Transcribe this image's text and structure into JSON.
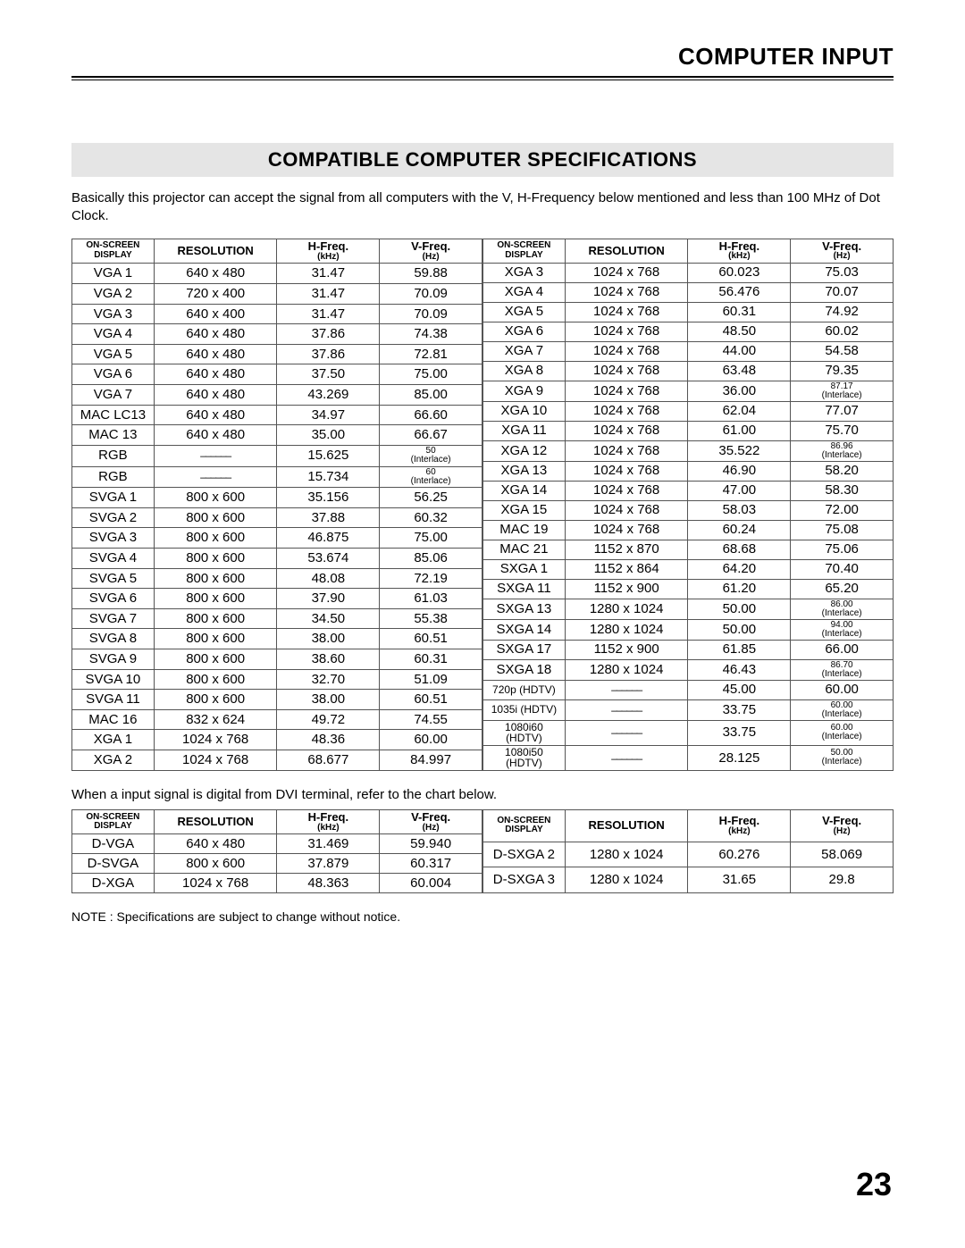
{
  "header": "COMPUTER INPUT",
  "title": "COMPATIBLE COMPUTER SPECIFICATIONS",
  "intro": "Basically this projector can accept the signal from all computers with the V, H-Frequency below mentioned and less than 100 MHz of Dot Clock.",
  "cols": {
    "c1": "ON-SCREEN DISPLAY",
    "c2": "RESOLUTION",
    "c3a": "H-Freq.",
    "c3b": "(kHz)",
    "c4a": "V-Freq.",
    "c4b": "(Hz)"
  },
  "dash": "––––––",
  "main_left": [
    {
      "d": "VGA 1",
      "r": "640 x 480",
      "h": "31.47",
      "v": "59.88"
    },
    {
      "d": "VGA 2",
      "r": "720 x 400",
      "h": "31.47",
      "v": "70.09"
    },
    {
      "d": "VGA 3",
      "r": "640 x 400",
      "h": "31.47",
      "v": "70.09"
    },
    {
      "d": "VGA 4",
      "r": "640 x 480",
      "h": "37.86",
      "v": "74.38"
    },
    {
      "d": "VGA 5",
      "r": "640 x 480",
      "h": "37.86",
      "v": "72.81"
    },
    {
      "d": "VGA 6",
      "r": "640 x 480",
      "h": "37.50",
      "v": "75.00"
    },
    {
      "d": "VGA 7",
      "r": "640 x 480",
      "h": "43.269",
      "v": "85.00"
    },
    {
      "d": "MAC LC13",
      "r": "640 x 480",
      "h": "34.97",
      "v": "66.60"
    },
    {
      "d": "MAC 13",
      "r": "640 x 480",
      "h": "35.00",
      "v": "66.67"
    },
    {
      "d": "RGB",
      "r": "__DASH__",
      "h": "15.625",
      "v": "50",
      "vsub": "(Interlace)"
    },
    {
      "d": "RGB",
      "r": "__DASH__",
      "h": "15.734",
      "v": "60",
      "vsub": "(Interlace)"
    },
    {
      "d": "SVGA 1",
      "r": "800 x 600",
      "h": "35.156",
      "v": "56.25"
    },
    {
      "d": "SVGA 2",
      "r": "800 x 600",
      "h": "37.88",
      "v": "60.32"
    },
    {
      "d": "SVGA 3",
      "r": "800 x 600",
      "h": "46.875",
      "v": "75.00"
    },
    {
      "d": "SVGA 4",
      "r": "800 x 600",
      "h": "53.674",
      "v": "85.06"
    },
    {
      "d": "SVGA 5",
      "r": "800 x 600",
      "h": "48.08",
      "v": "72.19"
    },
    {
      "d": "SVGA 6",
      "r": "800 x 600",
      "h": "37.90",
      "v": "61.03"
    },
    {
      "d": "SVGA 7",
      "r": "800 x 600",
      "h": "34.50",
      "v": "55.38"
    },
    {
      "d": "SVGA 8",
      "r": "800 x 600",
      "h": "38.00",
      "v": "60.51"
    },
    {
      "d": "SVGA 9",
      "r": "800 x 600",
      "h": "38.60",
      "v": "60.31"
    },
    {
      "d": "SVGA 10",
      "r": "800 x 600",
      "h": "32.70",
      "v": "51.09"
    },
    {
      "d": "SVGA 11",
      "r": "800 x 600",
      "h": "38.00",
      "v": "60.51"
    },
    {
      "d": "MAC 16",
      "r": "832 x 624",
      "h": "49.72",
      "v": "74.55"
    },
    {
      "d": "XGA 1",
      "r": "1024 x 768",
      "h": "48.36",
      "v": "60.00"
    },
    {
      "d": "XGA 2",
      "r": "1024 x 768",
      "h": "68.677",
      "v": "84.997"
    }
  ],
  "main_right": [
    {
      "d": "XGA 3",
      "r": "1024 x 768",
      "h": "60.023",
      "v": "75.03"
    },
    {
      "d": "XGA 4",
      "r": "1024 x 768",
      "h": "56.476",
      "v": "70.07"
    },
    {
      "d": "XGA 5",
      "r": "1024 x 768",
      "h": "60.31",
      "v": "74.92"
    },
    {
      "d": "XGA 6",
      "r": "1024 x 768",
      "h": "48.50",
      "v": "60.02"
    },
    {
      "d": "XGA 7",
      "r": "1024 x 768",
      "h": "44.00",
      "v": "54.58"
    },
    {
      "d": "XGA 8",
      "r": "1024 x 768",
      "h": "63.48",
      "v": "79.35"
    },
    {
      "d": "XGA 9",
      "r": "1024 x 768",
      "h": "36.00",
      "v": "87.17",
      "vsub": "(Interlace)"
    },
    {
      "d": "XGA 10",
      "r": "1024 x 768",
      "h": "62.04",
      "v": "77.07"
    },
    {
      "d": "XGA 11",
      "r": "1024 x 768",
      "h": "61.00",
      "v": "75.70"
    },
    {
      "d": "XGA 12",
      "r": "1024 x 768",
      "h": "35.522",
      "v": "86.96",
      "vsub": "(Interlace)"
    },
    {
      "d": "XGA 13",
      "r": "1024 x 768",
      "h": "46.90",
      "v": "58.20"
    },
    {
      "d": "XGA 14",
      "r": "1024 x 768",
      "h": "47.00",
      "v": "58.30"
    },
    {
      "d": "XGA 15",
      "r": "1024 x 768",
      "h": "58.03",
      "v": "72.00"
    },
    {
      "d": "MAC 19",
      "r": "1024 x 768",
      "h": "60.24",
      "v": "75.08"
    },
    {
      "d": "MAC 21",
      "r": "1152 x 870",
      "h": "68.68",
      "v": "75.06"
    },
    {
      "d": "SXGA 1",
      "r": "1152 x 864",
      "h": "64.20",
      "v": "70.40"
    },
    {
      "d": "SXGA 11",
      "r": "1152 x 900",
      "h": "61.20",
      "v": "65.20"
    },
    {
      "d": "SXGA 13",
      "r": "1280 x 1024",
      "h": "50.00",
      "v": "86.00",
      "vsub": "(Interlace)"
    },
    {
      "d": "SXGA 14",
      "r": "1280 x 1024",
      "h": "50.00",
      "v": "94.00",
      "vsub": "(Interlace)"
    },
    {
      "d": "SXGA 17",
      "r": "1152 x 900",
      "h": "61.85",
      "v": "66.00"
    },
    {
      "d": "SXGA 18",
      "r": "1280 x 1024",
      "h": "46.43",
      "v": "86.70",
      "vsub": "(Interlace)"
    },
    {
      "d": "720p (HDTV)",
      "dsm": true,
      "r": "__DASH__",
      "h": "45.00",
      "v": "60.00"
    },
    {
      "d": "1035i (HDTV)",
      "dsm": true,
      "r": "__DASH__",
      "h": "33.75",
      "v": "60.00",
      "vsub": "(Interlace)"
    },
    {
      "d": "1080i60 (HDTV)",
      "dsm": true,
      "r": "__DASH__",
      "h": "33.75",
      "v": "60.00",
      "vsub": "(Interlace)"
    },
    {
      "d": "1080i50 (HDTV)",
      "dsm": true,
      "r": "__DASH__",
      "h": "28.125",
      "v": "50.00",
      "vsub": "(Interlace)"
    }
  ],
  "dvi_note": "When a input signal is digital from DVI terminal, refer to the chart below.",
  "dvi_left": [
    {
      "d": "D-VGA",
      "r": "640 x 480",
      "h": "31.469",
      "v": "59.940"
    },
    {
      "d": "D-SVGA",
      "r": "800 x 600",
      "h": "37.879",
      "v": "60.317"
    },
    {
      "d": "D-XGA",
      "r": "1024 x 768",
      "h": "48.363",
      "v": "60.004"
    }
  ],
  "dvi_right": [
    {
      "d": "D-SXGA 2",
      "r": "1280 x 1024",
      "h": "60.276",
      "v": "58.069"
    },
    {
      "d": "D-SXGA 3",
      "r": "1280 x 1024",
      "h": "31.65",
      "v": "29.8"
    }
  ],
  "footnote": "NOTE : Specifications are subject to change without notice.",
  "pagenum": "23"
}
